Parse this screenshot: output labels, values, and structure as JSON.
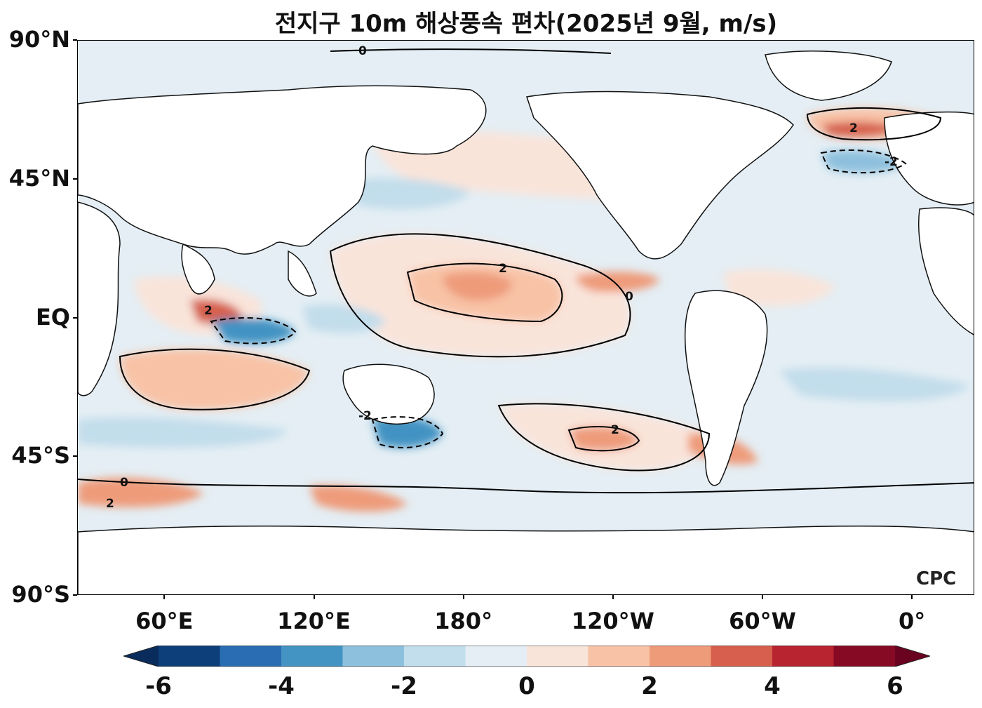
{
  "title": "전지구 10m 해상풍속 편차(2025년 9월, m/s)",
  "axes": {
    "lat_ticks": [
      {
        "label": "90°N",
        "lat": 90
      },
      {
        "label": "45°N",
        "lat": 45
      },
      {
        "label": "EQ",
        "lat": 0
      },
      {
        "label": "45°S",
        "lat": -45
      },
      {
        "label": "90°S",
        "lat": -90
      }
    ],
    "lon_ticks": [
      {
        "label": "60°E",
        "lon": 60
      },
      {
        "label": "120°E",
        "lon": 120
      },
      {
        "label": "180°",
        "lon": 180
      },
      {
        "label": "120°W",
        "lon": 240
      },
      {
        "label": "60°W",
        "lon": 300
      },
      {
        "label": "0°",
        "lon": 360
      }
    ],
    "lon_range": [
      25,
      385
    ],
    "lat_range": [
      -90,
      90
    ]
  },
  "colorbar": {
    "ticks": [
      "-6",
      "-4",
      "-2",
      "0",
      "2",
      "4",
      "6"
    ],
    "levels": [
      -6,
      -5,
      -4,
      -3,
      -2,
      -1,
      0,
      1,
      2,
      3,
      4,
      5,
      6
    ],
    "colors": [
      "#0d3f7a",
      "#2a6db2",
      "#4393c3",
      "#8dc0dd",
      "#c2ddeb",
      "#e4eef4",
      "#f9e4da",
      "#f8c2a6",
      "#ee9b7a",
      "#d6604d",
      "#b8242f",
      "#870a24"
    ],
    "extend": "both",
    "under_color": "#0a2c5c",
    "over_color": "#6a0320"
  },
  "contour_levels": [
    "-2",
    "0",
    "2"
  ],
  "logo": "CPC",
  "chart_data": {
    "type": "heatmap",
    "title": "전지구 10m 해상풍속 편차(2025년 9월, m/s)",
    "variable": "10m sea surface wind speed anomaly",
    "units": "m/s",
    "xlabel": "",
    "ylabel": "",
    "color_range": [
      -6,
      6
    ],
    "anomaly_regions": [
      {
        "region": "Central tropical Pacific (~5-15°N, 160°E-160°W)",
        "value": 3
      },
      {
        "region": "Arabian Sea / western Indian Ocean (~5°N, 60-75°E)",
        "value": 3
      },
      {
        "region": "Eastern tropical North Pacific (~10°N, 120°W)",
        "value": 3
      },
      {
        "region": "North Atlantic / Greenland-Iceland (~65°N)",
        "value": 3
      },
      {
        "region": "South Pacific (~45°S, 120°W)",
        "value": 3
      },
      {
        "region": "Southern Ocean (~55-60°S, 30-60°E)",
        "value": 3
      },
      {
        "region": "Southern Ocean (~55°S, 120-150°E)",
        "value": 3
      },
      {
        "region": "Eastern equatorial Indian Ocean (~5°S, 90-100°E)",
        "value": -4
      },
      {
        "region": "Tasman Sea (~40°S, 150°E)",
        "value": -4
      },
      {
        "region": "Western North Pacific (~30°N)",
        "value": -1.5
      },
      {
        "region": "Tropical eastern Pacific / Atlantic",
        "value": -0.5
      }
    ]
  }
}
